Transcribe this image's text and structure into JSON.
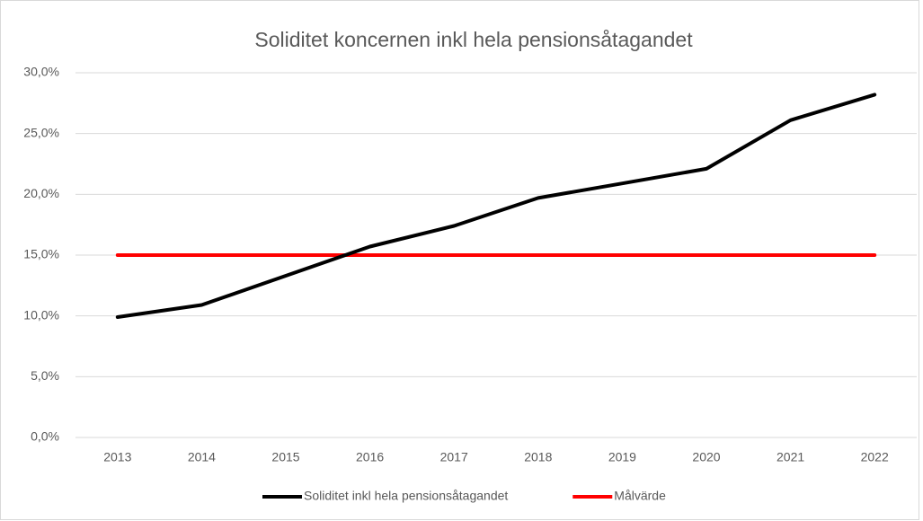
{
  "chart_data": {
    "type": "line",
    "title": "Soliditet koncernen inkl hela pensionsåtagandet",
    "categories": [
      "2013",
      "2014",
      "2015",
      "2016",
      "2017",
      "2018",
      "2019",
      "2020",
      "2021",
      "2022"
    ],
    "series": [
      {
        "name": "Soliditet inkl hela pensionsåtagandet",
        "color": "#000000",
        "values": [
          9.9,
          10.9,
          13.3,
          15.7,
          17.4,
          19.7,
          20.9,
          22.1,
          26.1,
          28.2
        ]
      },
      {
        "name": "Målvärde",
        "color": "#ff0000",
        "values": [
          15,
          15,
          15,
          15,
          15,
          15,
          15,
          15,
          15,
          15
        ]
      }
    ],
    "ylim": [
      0,
      30
    ],
    "yticks": [
      {
        "value": 0,
        "label": "0,0%"
      },
      {
        "value": 5,
        "label": "5,0%"
      },
      {
        "value": 10,
        "label": "10,0%"
      },
      {
        "value": 15,
        "label": "15,0%"
      },
      {
        "value": 20,
        "label": "20,0%"
      },
      {
        "value": 25,
        "label": "25,0%"
      },
      {
        "value": 30,
        "label": "30,0%"
      }
    ],
    "grid": true,
    "legend": "bottom"
  }
}
